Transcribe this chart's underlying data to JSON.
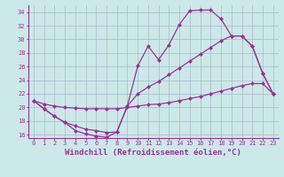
{
  "xlabel": "Windchill (Refroidissement éolien,°C)",
  "bg_color": "#cce8e8",
  "line_color": "#993399",
  "grid_color": "#aabbcc",
  "xlim": [
    -0.5,
    23.5
  ],
  "ylim": [
    15.5,
    35.0
  ],
  "yticks": [
    16,
    18,
    20,
    22,
    24,
    26,
    28,
    30,
    32,
    34
  ],
  "xticks": [
    0,
    1,
    2,
    3,
    4,
    5,
    6,
    7,
    8,
    9,
    10,
    11,
    12,
    13,
    14,
    15,
    16,
    17,
    18,
    19,
    20,
    21,
    22,
    23
  ],
  "line1_x": [
    0,
    1,
    2,
    3,
    4,
    5,
    6,
    7,
    8,
    9,
    10,
    11,
    12,
    13,
    14,
    15,
    16,
    17,
    18,
    19,
    20,
    21,
    22,
    23
  ],
  "line1_y": [
    21.0,
    19.8,
    18.7,
    17.8,
    16.6,
    16.1,
    15.8,
    15.6,
    16.4,
    20.2,
    26.1,
    29.0,
    27.0,
    29.2,
    32.2,
    34.2,
    34.3,
    34.3,
    33.0,
    30.5,
    30.5,
    29.0,
    25.0,
    22.0
  ],
  "line2_x": [
    0,
    1,
    2,
    3,
    4,
    5,
    6,
    7,
    8,
    9,
    10,
    11,
    12,
    13,
    14,
    15,
    16,
    17,
    18,
    19,
    20,
    21,
    22,
    23
  ],
  "line2_y": [
    21.0,
    19.8,
    18.7,
    17.8,
    17.3,
    16.8,
    16.6,
    16.3,
    16.4,
    20.2,
    22.0,
    23.0,
    23.8,
    24.8,
    25.8,
    26.8,
    27.8,
    28.8,
    29.8,
    30.5,
    30.5,
    29.0,
    25.0,
    22.0
  ],
  "line3_x": [
    0,
    1,
    2,
    3,
    4,
    5,
    6,
    7,
    8,
    9,
    10,
    11,
    12,
    13,
    14,
    15,
    16,
    17,
    18,
    19,
    20,
    21,
    22,
    23
  ],
  "line3_y": [
    21.0,
    20.5,
    20.2,
    20.0,
    19.9,
    19.8,
    19.8,
    19.8,
    19.8,
    20.0,
    20.2,
    20.4,
    20.5,
    20.7,
    21.0,
    21.3,
    21.6,
    22.0,
    22.4,
    22.8,
    23.2,
    23.5,
    23.5,
    22.0
  ],
  "markersize": 2.5,
  "linewidth": 0.9,
  "tick_fontsize": 5.0,
  "xlabel_fontsize": 6.5
}
